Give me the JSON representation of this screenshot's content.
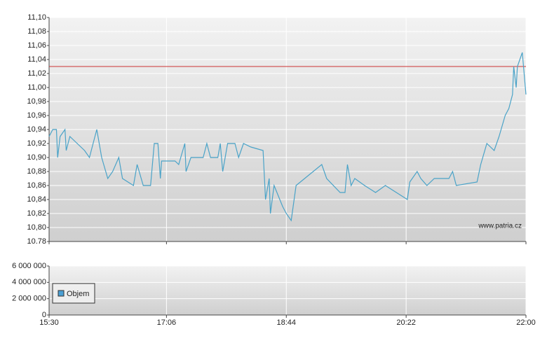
{
  "chart_data": [
    {
      "type": "line",
      "x": [
        "15:30",
        "15:33",
        "15:36",
        "15:37",
        "15:39",
        "15:43",
        "15:44",
        "15:47",
        "15:53",
        "15:59",
        "16:03",
        "16:09",
        "16:13",
        "16:18",
        "16:22",
        "16:27",
        "16:30",
        "16:39",
        "16:42",
        "16:47",
        "16:53",
        "16:56",
        "16:59",
        "17:01",
        "17:02",
        "17:13",
        "17:16",
        "17:21",
        "17:22",
        "17:26",
        "17:36",
        "17:39",
        "17:42",
        "17:48",
        "17:50",
        "17:52",
        "17:56",
        "18:02",
        "18:05",
        "18:09",
        "18:15",
        "18:25",
        "18:27",
        "18:30",
        "18:31",
        "18:34",
        "18:41",
        "18:44",
        "18:48",
        "18:52",
        "18:59",
        "19:13",
        "19:17",
        "19:28",
        "19:32",
        "19:34",
        "19:37",
        "19:40",
        "19:48",
        "19:57",
        "20:05",
        "20:14",
        "20:23",
        "20:25",
        "20:31",
        "20:34",
        "20:39",
        "20:45",
        "20:57",
        "21:00",
        "21:03",
        "21:20",
        "21:23",
        "21:28",
        "21:34",
        "21:38",
        "21:43",
        "21:46",
        "21:49",
        "21:50",
        "21:52",
        "21:53",
        "21:57",
        "21:58",
        "22:00"
      ],
      "series": [
        {
          "color": "#4aa3c8",
          "values": [
            10.93,
            10.94,
            10.94,
            10.9,
            10.93,
            10.94,
            10.91,
            10.93,
            10.92,
            10.91,
            10.9,
            10.94,
            10.9,
            10.87,
            10.88,
            10.9,
            10.87,
            10.86,
            10.89,
            10.86,
            10.86,
            10.92,
            10.92,
            10.87,
            10.895,
            10.895,
            10.89,
            10.92,
            10.88,
            10.9,
            10.9,
            10.92,
            10.9,
            10.9,
            10.92,
            10.88,
            10.92,
            10.92,
            10.9,
            10.92,
            10.915,
            10.91,
            10.84,
            10.87,
            10.82,
            10.86,
            10.83,
            10.82,
            10.81,
            10.86,
            10.87,
            10.89,
            10.87,
            10.85,
            10.85,
            10.89,
            10.86,
            10.87,
            10.86,
            10.85,
            10.86,
            10.85,
            10.84,
            10.865,
            10.88,
            10.87,
            10.86,
            10.87,
            10.87,
            10.88,
            10.86,
            10.865,
            10.89,
            10.92,
            10.91,
            10.93,
            10.96,
            10.97,
            10.99,
            11.03,
            11.0,
            11.03,
            11.05,
            11.03,
            10.99
          ]
        }
      ],
      "reference_line": {
        "value": 11.03,
        "color": "#cc3333"
      },
      "ylim": [
        10.78,
        11.1
      ],
      "yticks": [
        10.78,
        {
          "value": 10.8,
          "label": "10,80"
        },
        {
          "value": 10.82,
          "label": "10,82"
        },
        {
          "value": 10.84,
          "label": "10,84"
        },
        {
          "value": 10.86,
          "label": "10,86"
        },
        {
          "value": 10.88,
          "label": "10,88"
        },
        {
          "value": 10.9,
          "label": "10,90"
        },
        {
          "value": 10.92,
          "label": "10,92"
        },
        {
          "value": 10.94,
          "label": "10,94"
        },
        {
          "value": 10.96,
          "label": "10,96"
        },
        {
          "value": 10.98,
          "label": "10,98"
        },
        {
          "value": 11.0,
          "label": "11,00"
        },
        {
          "value": 11.02,
          "label": "11,02"
        },
        {
          "value": 11.04,
          "label": "11,04"
        },
        {
          "value": 11.06,
          "label": "11,06"
        },
        {
          "value": 11.08,
          "label": "11,08"
        },
        {
          "value": 11.1,
          "label": "11,10"
        }
      ],
      "grid": true,
      "annotation": "www.patria.cz"
    },
    {
      "type": "bar",
      "series": [
        {
          "name": "Objem",
          "color": "#4a9fd4"
        }
      ],
      "legend": "lower left",
      "xlim": [
        "15:30",
        "22:00"
      ],
      "xticks": [
        "15:30",
        "17:06",
        "18:44",
        "20:22",
        "22:00"
      ],
      "ylim": [
        0,
        6000000
      ],
      "yticks": [
        0,
        {
          "value": 2000000,
          "label": "2 000 000"
        },
        {
          "value": 4000000,
          "label": "4 000 000"
        },
        {
          "value": 6000000,
          "label": "6 000 000"
        }
      ],
      "grid": true
    }
  ]
}
